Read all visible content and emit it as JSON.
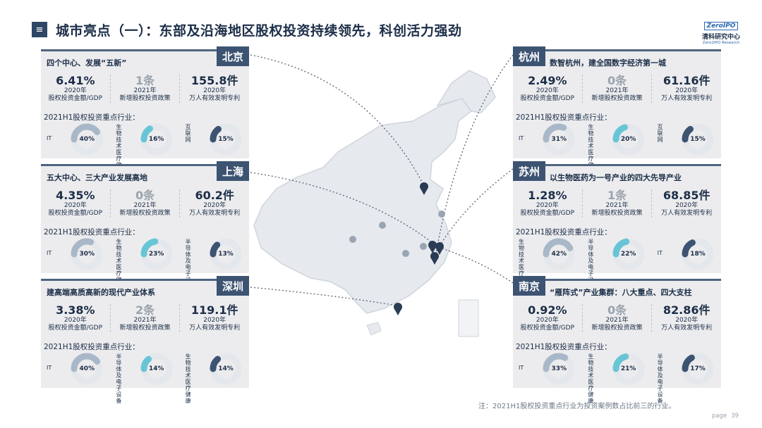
{
  "header": {
    "menu_glyph": "≡",
    "title": "城市亮点（一）：东部及沿海地区股权投资持续领先，科创活力强劲"
  },
  "logo": {
    "brand": "ZeroIPO",
    "cn": "清科研究中心",
    "en": "Zero2IPO Research"
  },
  "stat_labels": {
    "s1": "股权投资金额/GDP",
    "s2": "新增股权投资政策",
    "s3": "万人有效发明专利"
  },
  "industry_title": "2021H1股权投资重点行业：",
  "colors": {
    "IT": "#a9b8c8",
    "bio": "#68c5d6",
    "internet": "#3d5372",
    "semi": "#3d5372"
  },
  "cities": [
    {
      "city": "北京",
      "subtitle": "四个中心、发展“五新”",
      "stats": [
        {
          "value": "6.41%",
          "year": "2020年"
        },
        {
          "value": "1条",
          "year": "2021年"
        },
        {
          "value": "155.8件",
          "year": "2020年"
        }
      ],
      "industries": [
        {
          "name": "IT",
          "share": "40%",
          "frac": 0.4,
          "kind": "IT"
        },
        {
          "name": "生物技术医疗健康",
          "share": "16%",
          "frac": 0.16,
          "kind": "bio"
        },
        {
          "name": "互联网",
          "share": "15%",
          "frac": 0.15,
          "kind": "internet"
        }
      ]
    },
    {
      "city": "上海",
      "subtitle": "五大中心、三大产业发展高地",
      "stats": [
        {
          "value": "4.35%",
          "year": "2020年"
        },
        {
          "value": "0条",
          "year": "2021年"
        },
        {
          "value": "60.2件",
          "year": "2020年"
        }
      ],
      "industries": [
        {
          "name": "IT",
          "share": "30%",
          "frac": 0.3,
          "kind": "IT"
        },
        {
          "name": "生物技术医疗健康",
          "share": "23%",
          "frac": 0.23,
          "kind": "bio"
        },
        {
          "name": "半导体及电子设备",
          "share": "13%",
          "frac": 0.13,
          "kind": "semi"
        }
      ]
    },
    {
      "city": "深圳",
      "subtitle": "建高端高质高新的现代产业体系",
      "stats": [
        {
          "value": "3.38%",
          "year": "2020年"
        },
        {
          "value": "2条",
          "year": "2021年"
        },
        {
          "value": "119.1件",
          "year": "2020年"
        }
      ],
      "industries": [
        {
          "name": "IT",
          "share": "40%",
          "frac": 0.4,
          "kind": "IT"
        },
        {
          "name": "半导体及电子设备",
          "share": "14%",
          "frac": 0.14,
          "kind": "bio"
        },
        {
          "name": "生物技术医疗健康",
          "share": "14%",
          "frac": 0.14,
          "kind": "semi"
        }
      ]
    },
    {
      "city": "杭州",
      "subtitle": "数智杭州，建全国数字经济第一城",
      "stats": [
        {
          "value": "2.49%",
          "year": "2020年"
        },
        {
          "value": "0条",
          "year": "2021年"
        },
        {
          "value": "61.16件",
          "year": "2020年"
        }
      ],
      "industries": [
        {
          "name": "IT",
          "share": "31%",
          "frac": 0.31,
          "kind": "IT"
        },
        {
          "name": "生物技术医疗健康",
          "share": "20%",
          "frac": 0.2,
          "kind": "bio"
        },
        {
          "name": "互联网",
          "share": "15%",
          "frac": 0.15,
          "kind": "internet"
        }
      ]
    },
    {
      "city": "苏州",
      "subtitle": "以生物医药为一号产业的四大先导产业",
      "stats": [
        {
          "value": "1.28%",
          "year": "2020年"
        },
        {
          "value": "1条",
          "year": "2021年"
        },
        {
          "value": "68.85件",
          "year": "2020年"
        }
      ],
      "industries": [
        {
          "name": "生物技术医疗健康",
          "share": "42%",
          "frac": 0.42,
          "kind": "IT"
        },
        {
          "name": "半导体及电子设备",
          "share": "22%",
          "frac": 0.22,
          "kind": "bio"
        },
        {
          "name": "IT",
          "share": "18%",
          "frac": 0.18,
          "kind": "semi"
        }
      ]
    },
    {
      "city": "南京",
      "subtitle": "“雁阵式”产业集群：八大重点、四大支柱",
      "stats": [
        {
          "value": "0.92%",
          "year": "2020年"
        },
        {
          "value": "0条",
          "year": "2021年"
        },
        {
          "value": "82.86件",
          "year": "2020年"
        }
      ],
      "industries": [
        {
          "name": "IT",
          "share": "33%",
          "frac": 0.33,
          "kind": "IT"
        },
        {
          "name": "生物技术医疗健康",
          "share": "21%",
          "frac": 0.21,
          "kind": "bio"
        },
        {
          "name": "半导体及电子设备",
          "share": "17%",
          "frac": 0.17,
          "kind": "semi"
        }
      ]
    }
  ],
  "footnote": "注：2021H1股权投资重点行业为投资案例数占比前三的行业。",
  "page": {
    "label": "page",
    "number": "39"
  }
}
